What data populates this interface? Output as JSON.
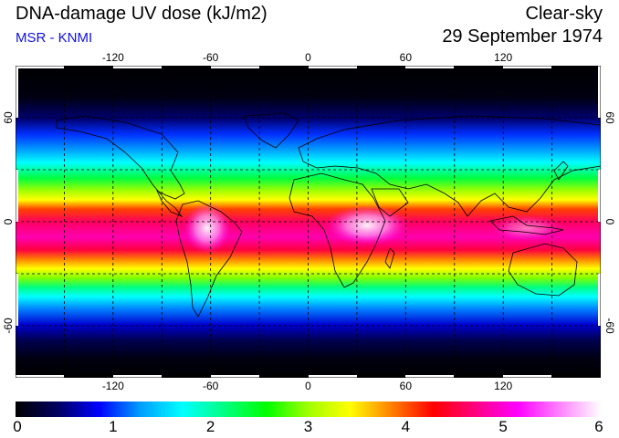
{
  "header": {
    "title": "DNA-damage UV dose (kJ/m2)",
    "subtitle": "MSR - KNMI",
    "sky_condition": "Clear-sky",
    "date": "29 September 1974"
  },
  "map": {
    "projection": "equirectangular",
    "lon_range": [
      -180,
      180
    ],
    "lat_range": [
      -90,
      90
    ],
    "lon_ticks": [
      "-120",
      "-60",
      "0",
      "60",
      "120"
    ],
    "lat_ticks": [
      "60",
      "0",
      "-60"
    ],
    "grid": true
  },
  "colorbar": {
    "min": 0,
    "max": 6,
    "tick_labels": [
      "0",
      "1",
      "2",
      "3",
      "4",
      "5",
      "6"
    ],
    "colors": [
      "#000000",
      "#000060",
      "#0000ff",
      "#00a0ff",
      "#00ffff",
      "#00ff80",
      "#00ff00",
      "#a0ff00",
      "#ffff00",
      "#ff8000",
      "#ff0000",
      "#ff0080",
      "#ff00ff",
      "#ff80ff",
      "#ffffff"
    ]
  }
}
